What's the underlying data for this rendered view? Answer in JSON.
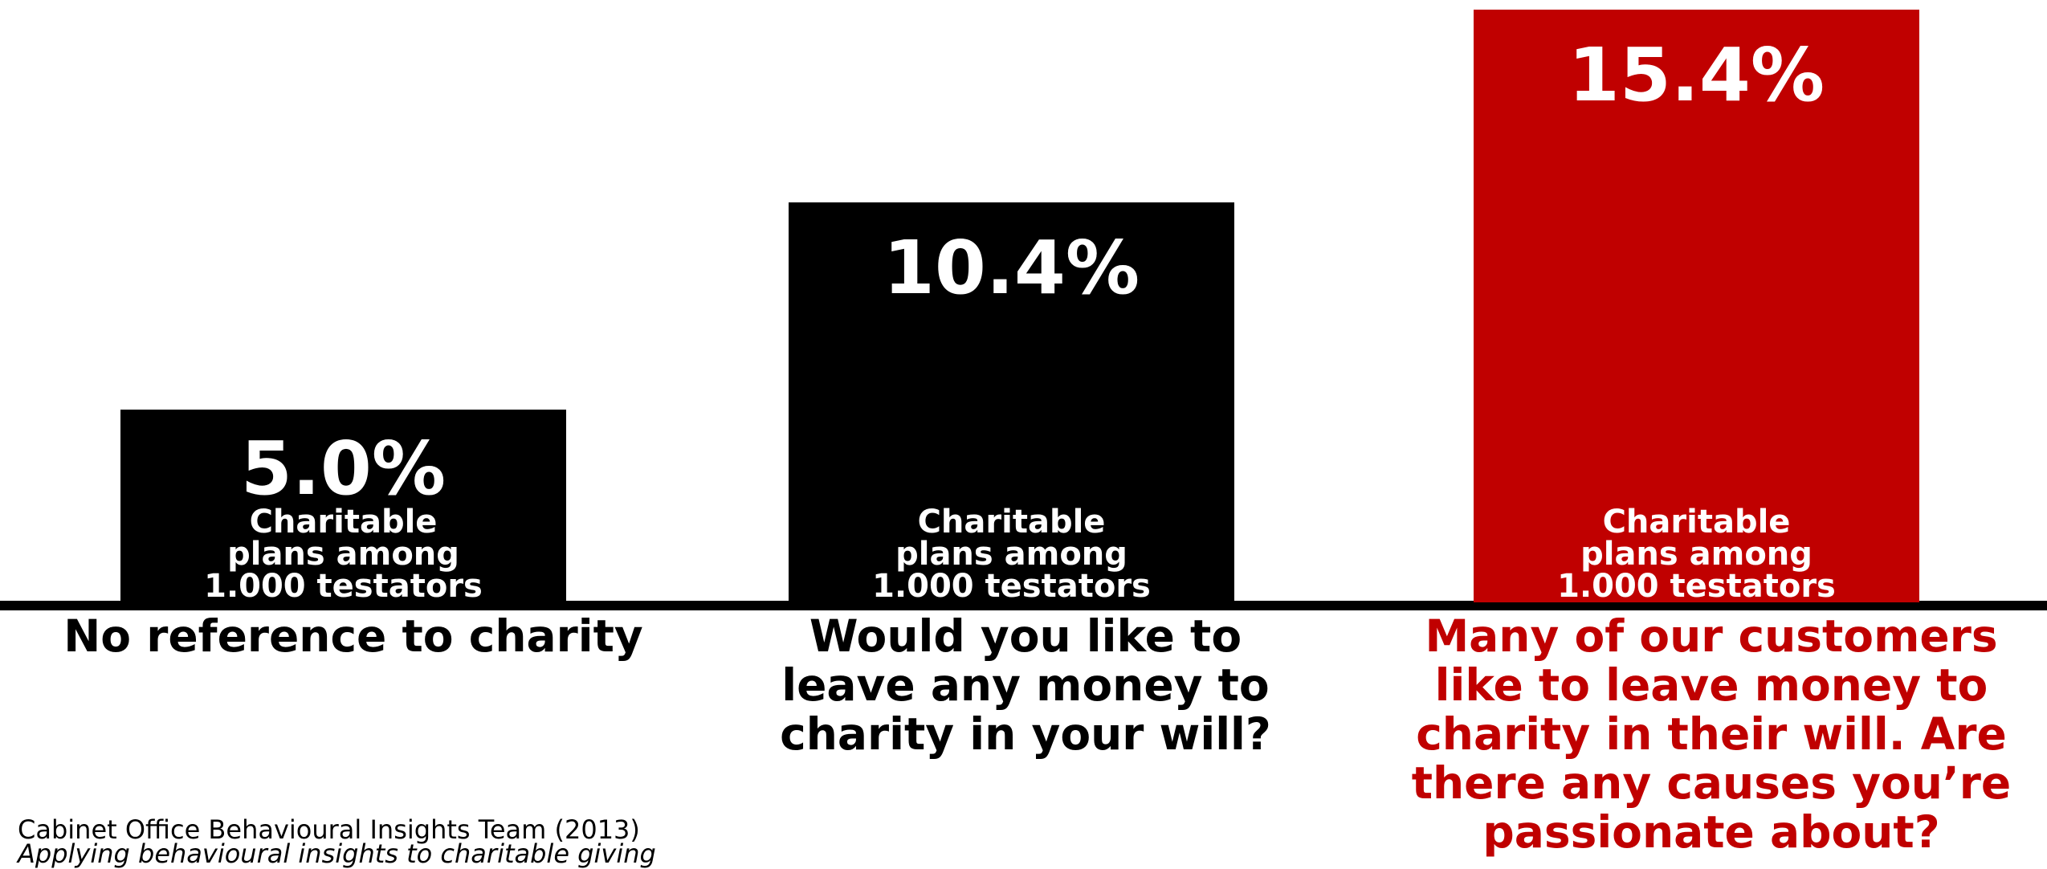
{
  "chart_data": {
    "type": "bar",
    "categories": [
      [
        "No reference to charity"
      ],
      [
        "Would you like to",
        "leave any money to",
        "charity in your will?"
      ],
      [
        "Many of our customers",
        "like to leave money to",
        "charity in their will. Are",
        "there any causes you’re",
        "passionate about?"
      ]
    ],
    "values": [
      5.0,
      10.4,
      15.4
    ],
    "value_labels": [
      "5.0%",
      "10.4%",
      "15.4%"
    ],
    "bar_description": [
      "Charitable",
      "plans among",
      "1.000 testators"
    ],
    "ylim": [
      0,
      15.4
    ],
    "grid": false,
    "colors": [
      "#000000",
      "#000000",
      "#c00000"
    ],
    "label_colors": [
      "#000000",
      "#000000",
      "#c00000"
    ]
  },
  "source": {
    "line1": "Cabinet Office Behavioural Insights Team (2013)",
    "line2": "Applying behavioural insights to charitable giving"
  }
}
